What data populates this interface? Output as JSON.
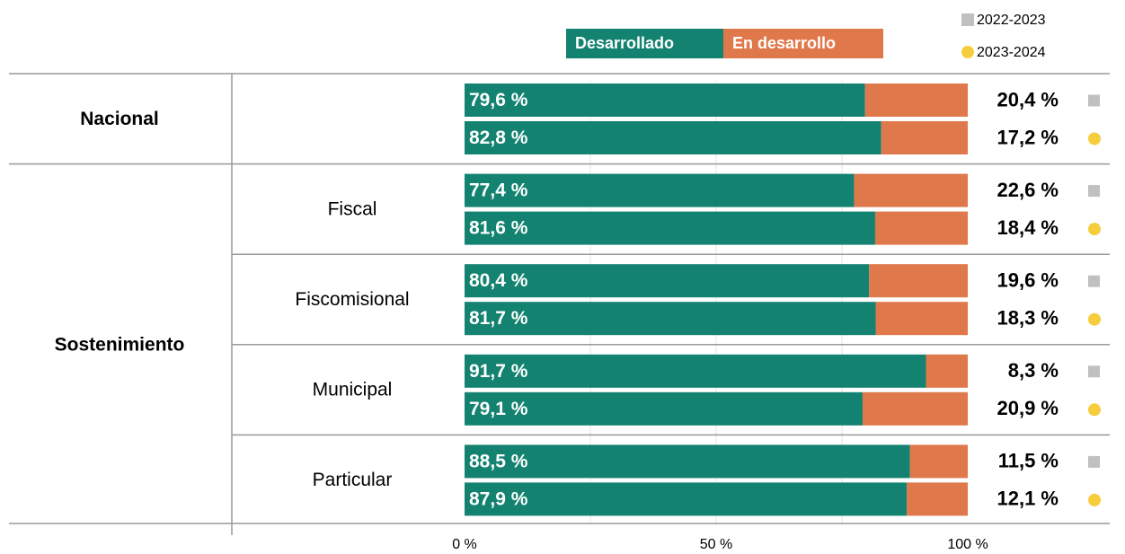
{
  "chart_data": {
    "type": "bar",
    "orientation": "horizontal",
    "stacked": true,
    "groups": [
      {
        "label": "Nacional",
        "categories": [
          null
        ]
      },
      {
        "label": "Sostenimiento",
        "categories": [
          "Fiscal",
          "Fiscomisional",
          "Municipal",
          "Particular"
        ]
      }
    ],
    "periods": [
      {
        "name": "2022-2023",
        "color": "#c0c0c0",
        "marker": "square"
      },
      {
        "name": "2023-2024",
        "color": "#f6cd3c",
        "marker": "circle"
      }
    ],
    "series": [
      {
        "name": "Desarrollado",
        "color": "#138270",
        "values": [
          [
            79.6,
            82.8
          ],
          [
            77.4,
            81.6
          ],
          [
            80.4,
            81.7
          ],
          [
            91.7,
            79.1
          ],
          [
            88.5,
            87.9
          ]
        ],
        "value_labels": [
          [
            "79,6 %",
            "82,8 %"
          ],
          [
            "77,4 %",
            "81,6 %"
          ],
          [
            "80,4 %",
            "81,7 %"
          ],
          [
            "91,7 %",
            "79,1 %"
          ],
          [
            "88,5 %",
            "87,9 %"
          ]
        ]
      },
      {
        "name": "En desarrollo",
        "color": "#df784a",
        "values": [
          [
            20.4,
            17.2
          ],
          [
            22.6,
            18.4
          ],
          [
            19.6,
            18.3
          ],
          [
            8.3,
            20.9
          ],
          [
            11.5,
            12.1
          ]
        ],
        "value_labels": [
          [
            "20,4 %",
            "17,2 %"
          ],
          [
            "22,6 %",
            "18,4 %"
          ],
          [
            "19,6 %",
            "18,3 %"
          ],
          [
            "8,3 %",
            "20,9 %"
          ],
          [
            "11,5 %",
            "12,1 %"
          ]
        ]
      }
    ],
    "xlim": [
      0,
      100
    ],
    "xticks": [
      {
        "value": 0,
        "label": "0 %"
      },
      {
        "value": 50,
        "label": "50 %"
      },
      {
        "value": 100,
        "label": "100 %"
      }
    ],
    "xgrid": [
      25,
      50,
      75
    ]
  }
}
